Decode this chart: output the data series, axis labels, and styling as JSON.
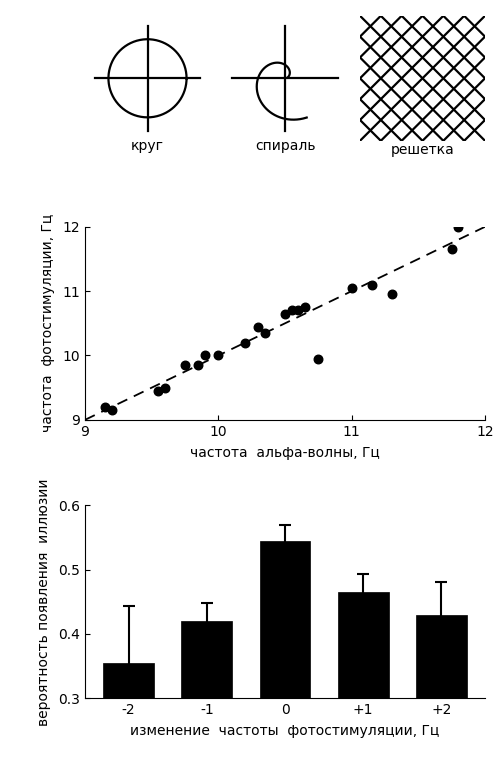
{
  "scatter_x": [
    9.15,
    9.2,
    9.55,
    9.6,
    9.75,
    9.85,
    9.9,
    10.0,
    10.2,
    10.3,
    10.35,
    10.5,
    10.55,
    10.6,
    10.65,
    10.75,
    11.0,
    11.15,
    11.3,
    11.75,
    11.8
  ],
  "scatter_y": [
    9.2,
    9.15,
    9.45,
    9.5,
    9.85,
    9.85,
    10.0,
    10.0,
    10.2,
    10.45,
    10.35,
    10.65,
    10.7,
    10.7,
    10.75,
    9.95,
    11.05,
    11.1,
    10.95,
    11.65,
    12.0
  ],
  "dashed_line_x": [
    9.0,
    12.0
  ],
  "dashed_line_y": [
    9.0,
    12.0
  ],
  "scatter_xlabel": "частота  альфа-волны, Гц",
  "scatter_ylabel": "частота  фотостимуляции, Гц",
  "scatter_xlim": [
    9.0,
    12.0
  ],
  "scatter_ylim": [
    9.0,
    12.0
  ],
  "scatter_xticks": [
    9,
    10,
    11,
    12
  ],
  "scatter_yticks": [
    9,
    10,
    11,
    12
  ],
  "bar_categories": [
    "-2",
    "-1",
    "0",
    "+1",
    "+2"
  ],
  "bar_values": [
    0.355,
    0.42,
    0.545,
    0.465,
    0.43
  ],
  "bar_errors": [
    0.088,
    0.028,
    0.025,
    0.028,
    0.05
  ],
  "bar_xlabel": "изменение  частоты  фотостимуляции, Гц",
  "bar_ylabel": "вероятность появления  иллюзии",
  "bar_ylim": [
    0.3,
    0.6
  ],
  "bar_yticks": [
    0.3,
    0.4,
    0.5,
    0.6
  ],
  "label_krug": "круг",
  "label_spiral": "спираль",
  "label_reshetka": "решетка",
  "bar_color": "#000000",
  "scatter_color": "#000000",
  "bg_color": "#ffffff"
}
